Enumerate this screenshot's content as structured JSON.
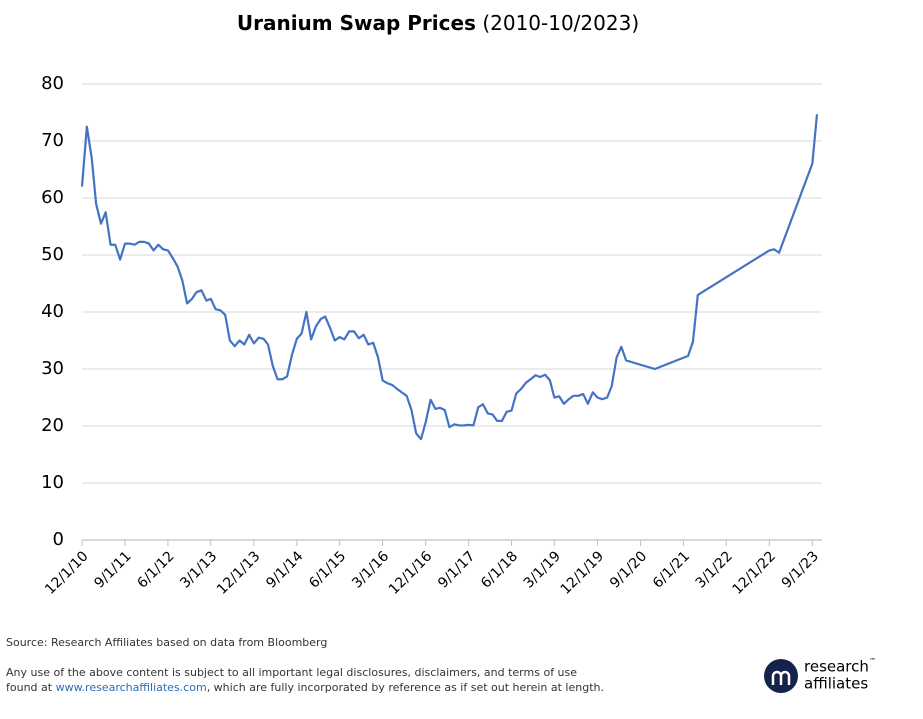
{
  "chart_data": {
    "type": "line",
    "title": "Uranium Swap Prices",
    "title_note": "(2010-10/2023)",
    "x": [
      "2010-12-01",
      "2011-01-01",
      "2011-02-01",
      "2011-03-01",
      "2011-04-01",
      "2011-05-01",
      "2011-06-01",
      "2011-07-01",
      "2011-08-01",
      "2011-09-01",
      "2011-10-01",
      "2011-11-01",
      "2011-12-01",
      "2012-01-01",
      "2012-02-01",
      "2012-03-01",
      "2012-04-01",
      "2012-05-01",
      "2012-06-01",
      "2012-07-01",
      "2012-08-01",
      "2012-09-01",
      "2012-10-01",
      "2012-11-01",
      "2012-12-01",
      "2013-01-01",
      "2013-02-01",
      "2013-03-01",
      "2013-04-01",
      "2013-05-01",
      "2013-06-01",
      "2013-07-01",
      "2013-08-01",
      "2013-09-01",
      "2013-10-01",
      "2013-11-01",
      "2013-12-01",
      "2014-01-01",
      "2014-02-01",
      "2014-03-01",
      "2014-04-01",
      "2014-05-01",
      "2014-06-01",
      "2014-07-01",
      "2014-08-01",
      "2014-09-01",
      "2014-10-01",
      "2014-11-01",
      "2014-12-01",
      "2015-01-01",
      "2015-02-01",
      "2015-03-01",
      "2015-04-01",
      "2015-05-01",
      "2015-06-01",
      "2015-07-01",
      "2015-08-01",
      "2015-09-01",
      "2015-10-01",
      "2015-11-01",
      "2015-12-01",
      "2016-01-01",
      "2016-02-01",
      "2016-03-01",
      "2016-04-01",
      "2016-05-01",
      "2016-06-01",
      "2016-07-01",
      "2016-08-01",
      "2016-09-01",
      "2016-10-01",
      "2016-11-01",
      "2016-12-01",
      "2017-01-01",
      "2017-02-01",
      "2017-03-01",
      "2017-04-01",
      "2017-05-01",
      "2017-06-01",
      "2017-07-01",
      "2017-08-01",
      "2017-09-01",
      "2017-10-01",
      "2017-11-01",
      "2017-12-01",
      "2018-01-01",
      "2018-02-01",
      "2018-03-01",
      "2018-04-01",
      "2018-05-01",
      "2018-06-01",
      "2018-07-01",
      "2018-08-01",
      "2018-09-01",
      "2018-10-01",
      "2018-11-01",
      "2018-12-01",
      "2019-01-01",
      "2019-02-01",
      "2019-03-01",
      "2019-04-01",
      "2019-05-01",
      "2019-06-01",
      "2019-07-01",
      "2019-08-01",
      "2019-09-01",
      "2019-10-01",
      "2019-11-01",
      "2019-12-01",
      "2020-01-01",
      "2020-02-01",
      "2020-03-01",
      "2020-04-01",
      "2020-05-01",
      "2020-06-01",
      "2020-12-01",
      "2021-07-01",
      "2021-08-01",
      "2021-09-01",
      "2022-12-01",
      "2023-01-01",
      "2023-02-01",
      "2023-09-01",
      "2023-10-01"
    ],
    "series": [
      {
        "color": "#4472c4",
        "values": [
          62,
          72.5,
          67,
          59,
          55.5,
          57.5,
          51.8,
          51.8,
          49.2,
          52,
          52,
          51.8,
          52.3,
          52.3,
          52,
          50.8,
          51.8,
          51,
          50.8,
          49.5,
          48,
          45.5,
          41.5,
          42.3,
          43.5,
          43.8,
          42,
          42.3,
          40.5,
          40.3,
          39.5,
          35,
          34,
          35,
          34.3,
          36,
          34.5,
          35.5,
          35.3,
          34.3,
          30.5,
          28.2,
          28.2,
          28.7,
          32.5,
          35.3,
          36.2,
          40,
          35.2,
          37.5,
          38.8,
          39.2,
          37.2,
          35,
          35.6,
          35.2,
          36.6,
          36.6,
          35.4,
          36,
          34.3,
          34.6,
          32,
          28,
          27.5,
          27.2,
          26.5,
          25.9,
          25.3,
          22.8,
          18.7,
          17.7,
          20.7,
          24.6,
          23,
          23.2,
          22.8,
          19.8,
          20.3,
          20.1,
          20.1,
          20.2,
          20.1,
          23.3,
          23.8,
          22.2,
          22,
          20.9,
          20.9,
          22.5,
          22.7,
          25.7,
          26.5,
          27.6,
          28.2,
          28.9,
          28.6,
          29,
          28,
          25,
          25.2,
          23.9,
          24.7,
          25.3,
          25.3,
          25.6,
          23.9,
          25.9,
          25,
          24.7,
          25,
          27,
          32,
          33.9,
          31.5,
          30,
          32.3,
          34.8,
          43,
          50.8,
          51,
          50.4,
          66,
          74.7
        ]
      }
    ],
    "xlim": [
      "2010-12-01",
      "2023-10-01"
    ],
    "xticks": [
      {
        "value": "2010-12-01",
        "label": "12/1/10"
      },
      {
        "value": "2011-09-01",
        "label": "9/1/11"
      },
      {
        "value": "2012-06-01",
        "label": "6/1/12"
      },
      {
        "value": "2013-03-01",
        "label": "3/1/13"
      },
      {
        "value": "2013-12-01",
        "label": "12/1/13"
      },
      {
        "value": "2014-09-01",
        "label": "9/1/14"
      },
      {
        "value": "2015-06-01",
        "label": "6/1/15"
      },
      {
        "value": "2016-03-01",
        "label": "3/1/16"
      },
      {
        "value": "2016-12-01",
        "label": "12/1/16"
      },
      {
        "value": "2017-09-01",
        "label": "9/1/17"
      },
      {
        "value": "2018-06-01",
        "label": "6/1/18"
      },
      {
        "value": "2019-03-01",
        "label": "3/1/19"
      },
      {
        "value": "2019-12-01",
        "label": "12/1/19"
      },
      {
        "value": "2020-09-01",
        "label": "9/1/20"
      },
      {
        "value": "2021-06-01",
        "label": "6/1/21"
      },
      {
        "value": "2022-03-01",
        "label": "3/1/22"
      },
      {
        "value": "2022-12-01",
        "label": "12/1/22"
      },
      {
        "value": "2023-09-01",
        "label": "9/1/23"
      }
    ],
    "ylim": [
      0,
      80
    ],
    "yticks": [
      0,
      10,
      20,
      30,
      40,
      50,
      60,
      70,
      80
    ],
    "grid": true
  },
  "footer": {
    "source": "Source: Research Affiliates based on data from Bloomberg",
    "disclaimer_line1": "Any use of the above content is subject to all important legal disclosures, disclaimers, and terms of use",
    "disclaimer_line2_start": "found at ",
    "link": "www.researchaffiliates.com",
    "disclaimer_line2_end": ", which are fully incorporated by reference as if set out herein at length.",
    "logo_line1": "research",
    "logo_tm": "™",
    "logo_line2": "affiliates"
  }
}
